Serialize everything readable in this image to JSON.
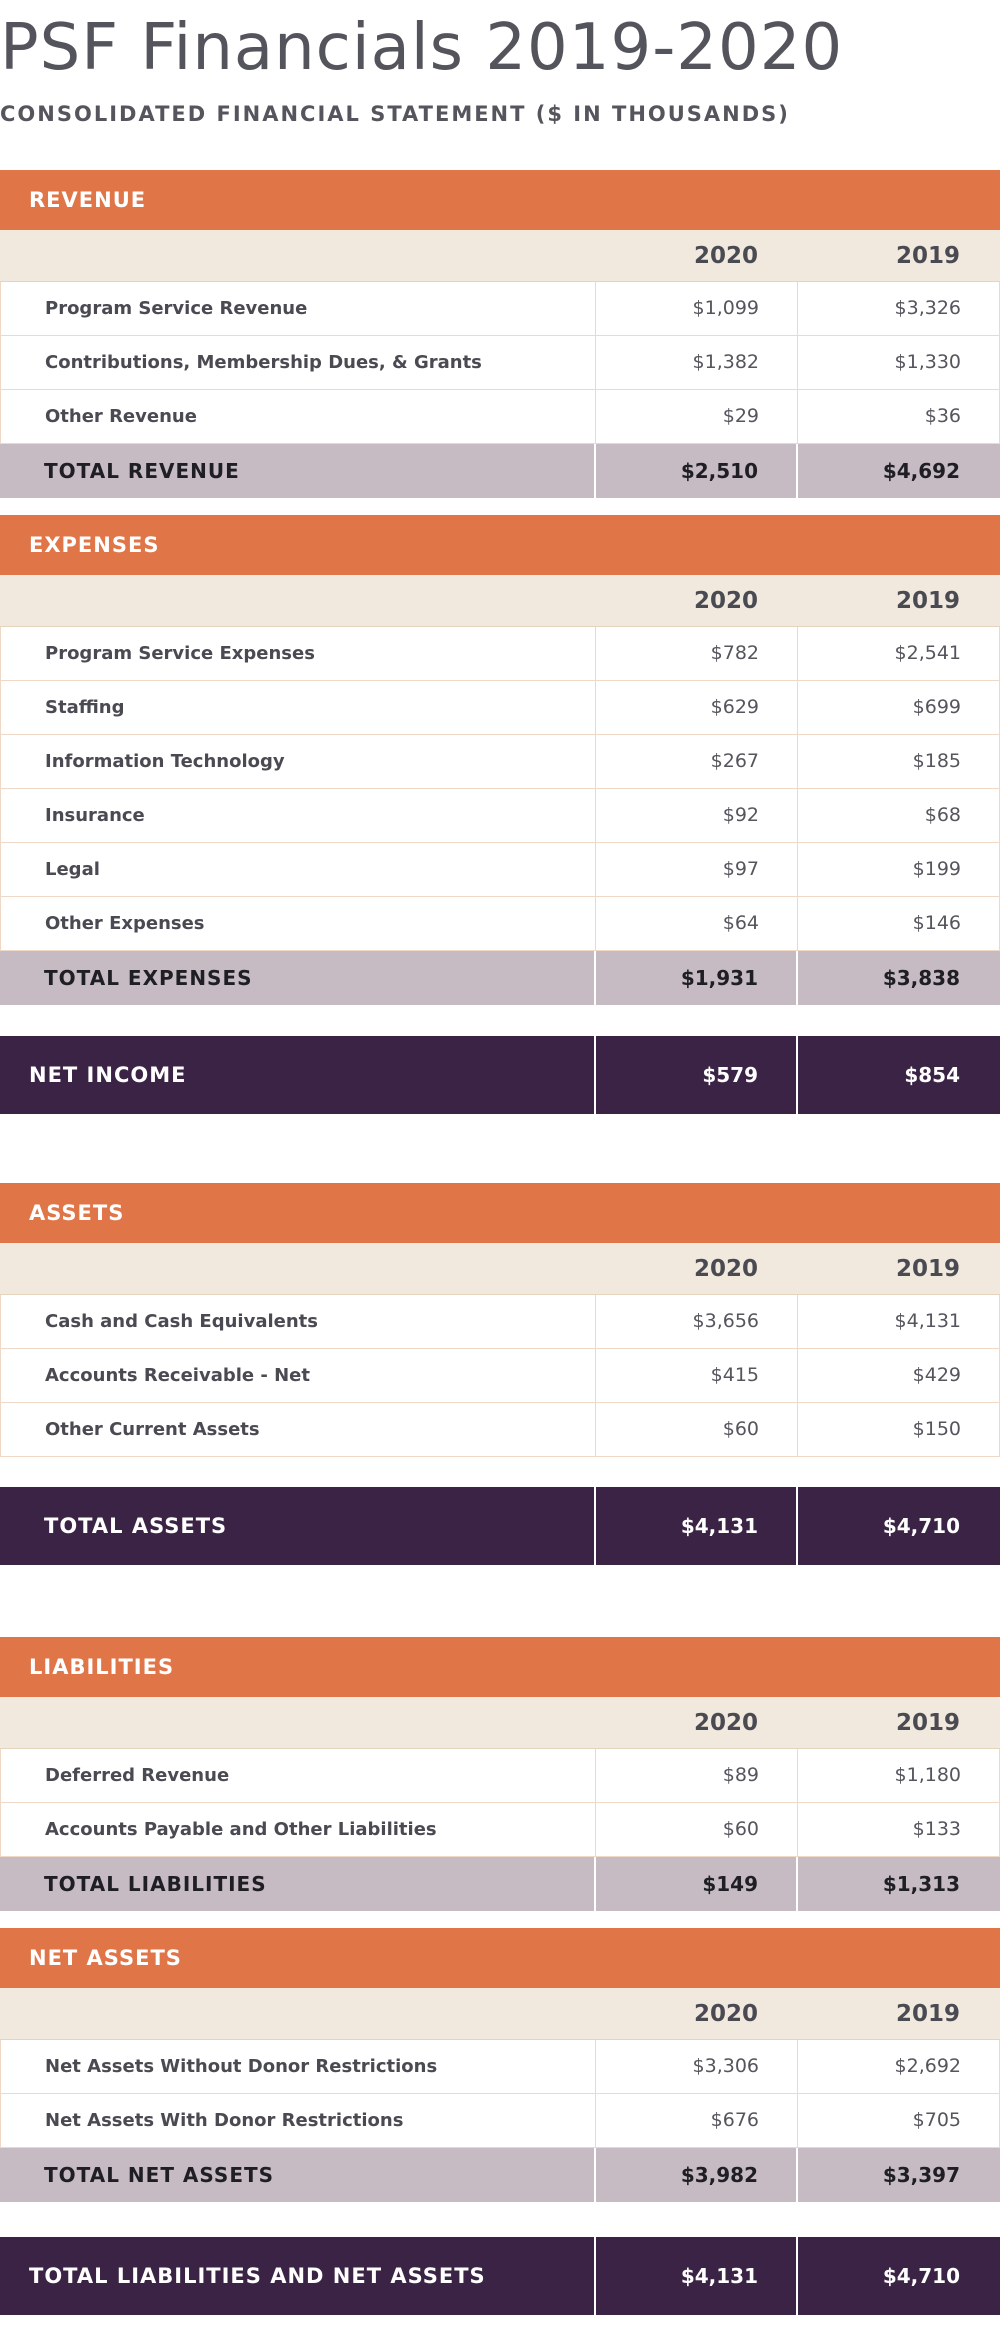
{
  "title": "PSF Financials 2019-2020",
  "subtitle": "CONSOLIDATED FINANCIAL STATEMENT ($ IN THOUSANDS)",
  "colors": {
    "section_header": "#e07548",
    "year_row": "#f1e9dd",
    "total_row": "#c6bbc3",
    "dark_row": "#3b2345"
  },
  "revenue": {
    "heading": "REVENUE",
    "years": [
      "2020",
      "2019"
    ],
    "rows": [
      {
        "label": "Program Service Revenue",
        "v2020": "$1,099",
        "v2019": "$3,326"
      },
      {
        "label": "Contributions, Membership Dues, & Grants",
        "v2020": "$1,382",
        "v2019": "$1,330"
      },
      {
        "label": "Other Revenue",
        "v2020": "$29",
        "v2019": "$36"
      }
    ],
    "total": {
      "label": "TOTAL REVENUE",
      "v2020": "$2,510",
      "v2019": "$4,692"
    }
  },
  "expenses": {
    "heading": "EXPENSES",
    "years": [
      "2020",
      "2019"
    ],
    "rows": [
      {
        "label": "Program Service Expenses",
        "v2020": "$782",
        "v2019": "$2,541"
      },
      {
        "label": "Staffing",
        "v2020": "$629",
        "v2019": "$699"
      },
      {
        "label": "Information Technology",
        "v2020": "$267",
        "v2019": "$185"
      },
      {
        "label": "Insurance",
        "v2020": "$92",
        "v2019": "$68"
      },
      {
        "label": "Legal",
        "v2020": "$97",
        "v2019": "$199"
      },
      {
        "label": "Other Expenses",
        "v2020": "$64",
        "v2019": "$146"
      }
    ],
    "total": {
      "label": "TOTAL EXPENSES",
      "v2020": "$1,931",
      "v2019": "$3,838"
    }
  },
  "net_income": {
    "label": "NET INCOME",
    "v2020": "$579",
    "v2019": "$854"
  },
  "assets": {
    "heading": "ASSETS",
    "years": [
      "2020",
      "2019"
    ],
    "rows": [
      {
        "label": "Cash and Cash Equivalents",
        "v2020": "$3,656",
        "v2019": "$4,131"
      },
      {
        "label": "Accounts Receivable - Net",
        "v2020": "$415",
        "v2019": "$429"
      },
      {
        "label": "Other Current Assets",
        "v2020": "$60",
        "v2019": "$150"
      }
    ]
  },
  "total_assets": {
    "label": "TOTAL ASSETS",
    "v2020": "$4,131",
    "v2019": "$4,710"
  },
  "liabilities": {
    "heading": "LIABILITIES",
    "years": [
      "2020",
      "2019"
    ],
    "rows": [
      {
        "label": "Deferred Revenue",
        "v2020": "$89",
        "v2019": "$1,180"
      },
      {
        "label": "Accounts Payable and Other Liabilities",
        "v2020": "$60",
        "v2019": "$133"
      }
    ],
    "total": {
      "label": "TOTAL LIABILITIES",
      "v2020": "$149",
      "v2019": "$1,313"
    }
  },
  "net_assets": {
    "heading": "NET ASSETS",
    "years": [
      "2020",
      "2019"
    ],
    "rows": [
      {
        "label": "Net Assets Without Donor Restrictions",
        "v2020": "$3,306",
        "v2019": "$2,692"
      },
      {
        "label": "Net Assets With Donor Restrictions",
        "v2020": "$676",
        "v2019": "$705"
      }
    ],
    "total": {
      "label": "TOTAL NET ASSETS",
      "v2020": "$3,982",
      "v2019": "$3,397"
    }
  },
  "total_liabilities_net_assets": {
    "label": "TOTAL LIABILITIES AND NET ASSETS",
    "v2020": "$4,131",
    "v2019": "$4,710"
  }
}
